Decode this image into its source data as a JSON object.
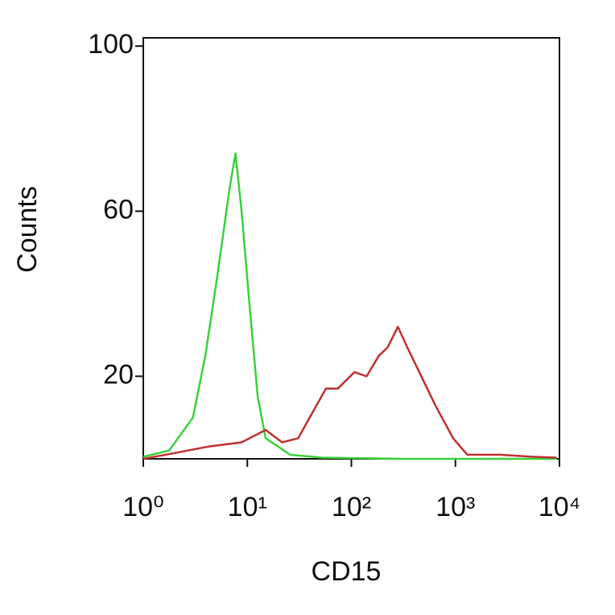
{
  "chart_data": {
    "type": "line",
    "xlabel": "CD15",
    "ylabel": "Counts",
    "xscale": "log",
    "xlim": [
      1,
      10000
    ],
    "ylim": [
      0,
      102
    ],
    "xticks": [
      {
        "value": 1,
        "label": "10⁰"
      },
      {
        "value": 10,
        "label": "10¹"
      },
      {
        "value": 100,
        "label": "10²"
      },
      {
        "value": 1000,
        "label": "10³"
      },
      {
        "value": 10000,
        "label": "10⁴"
      }
    ],
    "yticks": [
      20,
      60,
      100
    ],
    "series": [
      {
        "color": "#3ad13a",
        "x": [
          1,
          1.77,
          3.0,
          3.95,
          5.2,
          6.7,
          7.7,
          8.8,
          10.7,
          12.6,
          15,
          19.7,
          25.7,
          52,
          310,
          9500
        ],
        "values": [
          0.5,
          2,
          10,
          25,
          45,
          65,
          74,
          60,
          35,
          15,
          5,
          3,
          1,
          0.3,
          0,
          0
        ]
      },
      {
        "color": "#c03030",
        "x": [
          1,
          2.1,
          4.3,
          8.8,
          15,
          21.6,
          30.8,
          44,
          57,
          74,
          107,
          140,
          184,
          223,
          280,
          345,
          450,
          640,
          950,
          1300,
          2700,
          5400,
          9400
        ],
        "values": [
          0,
          1.5,
          3,
          4,
          7,
          4,
          5,
          12,
          17,
          17,
          21,
          20,
          25,
          27,
          32,
          27,
          21,
          13,
          5,
          1,
          1,
          0.5,
          0.3
        ]
      }
    ]
  }
}
